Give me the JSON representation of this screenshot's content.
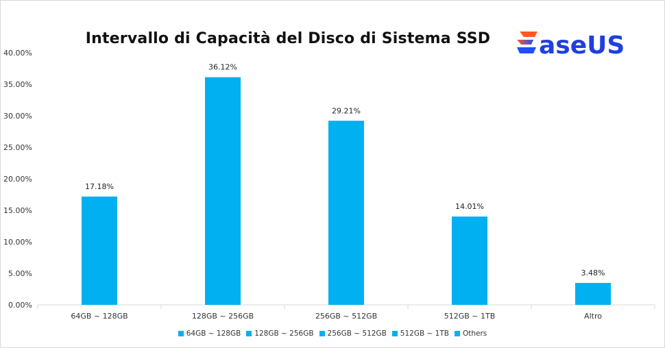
{
  "brand": {
    "logo_text": "EaseUS",
    "logo_colors": [
      "#ff5a1f",
      "#1f4fff"
    ]
  },
  "colors": {
    "bar": "#00b0f0",
    "grid_axis": "#d9d9d9"
  },
  "chart_data": {
    "type": "bar",
    "title": "Intervallo di Capacità del Disco di Sistema SSD",
    "categories": [
      "64GB ~ 128GB",
      "128GB ~ 256GB",
      "256GB ~ 512GB",
      "512GB ~ 1TB",
      "Altro"
    ],
    "values": [
      17.18,
      36.12,
      29.21,
      14.01,
      3.48
    ],
    "value_labels": [
      "17.18%",
      "36.12%",
      "29.21%",
      "14.01%",
      "3.48%"
    ],
    "ylim": [
      0,
      40
    ],
    "yticks": [
      0,
      5,
      10,
      15,
      20,
      25,
      30,
      35,
      40
    ],
    "ytick_labels": [
      "0.00%",
      "5.00%",
      "10.00%",
      "15.00%",
      "20.00%",
      "25.00%",
      "30.00%",
      "35.00%",
      "40.00%"
    ],
    "xlabel": "",
    "ylabel": "",
    "grid": false,
    "legend_position": "bottom",
    "legend": [
      "64GB ~ 128GB",
      "128GB ~ 256GB",
      "256GB ~ 512GB",
      "512GB ~ 1TB",
      "Others"
    ]
  }
}
